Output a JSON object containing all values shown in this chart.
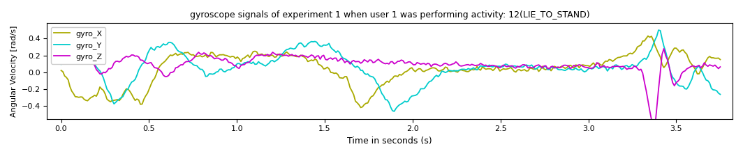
{
  "title": "gyroscope signals of experiment 1 when user 1 was performing activity: 12(LIE_TO_STAND)",
  "xlabel": "Time in seconds (s)",
  "ylabel": "Angular Velocity [rad/s]",
  "legend_labels": [
    "gyro_X",
    "gyro_Y",
    "gyro_Z"
  ],
  "colors": [
    "#aaaa00",
    "#00cccc",
    "#cc00cc"
  ],
  "figsize": [
    10.64,
    2.24
  ],
  "dpi": 100,
  "ylim": [
    -0.55,
    0.58
  ],
  "xlim": [
    -0.08,
    3.82
  ],
  "xticks": [
    0.0,
    0.5,
    1.0,
    1.5,
    2.0,
    2.5,
    3.0,
    3.5
  ],
  "yticks": [
    -0.4,
    -0.2,
    0.0,
    0.2,
    0.4
  ],
  "linewidth": 1.3
}
